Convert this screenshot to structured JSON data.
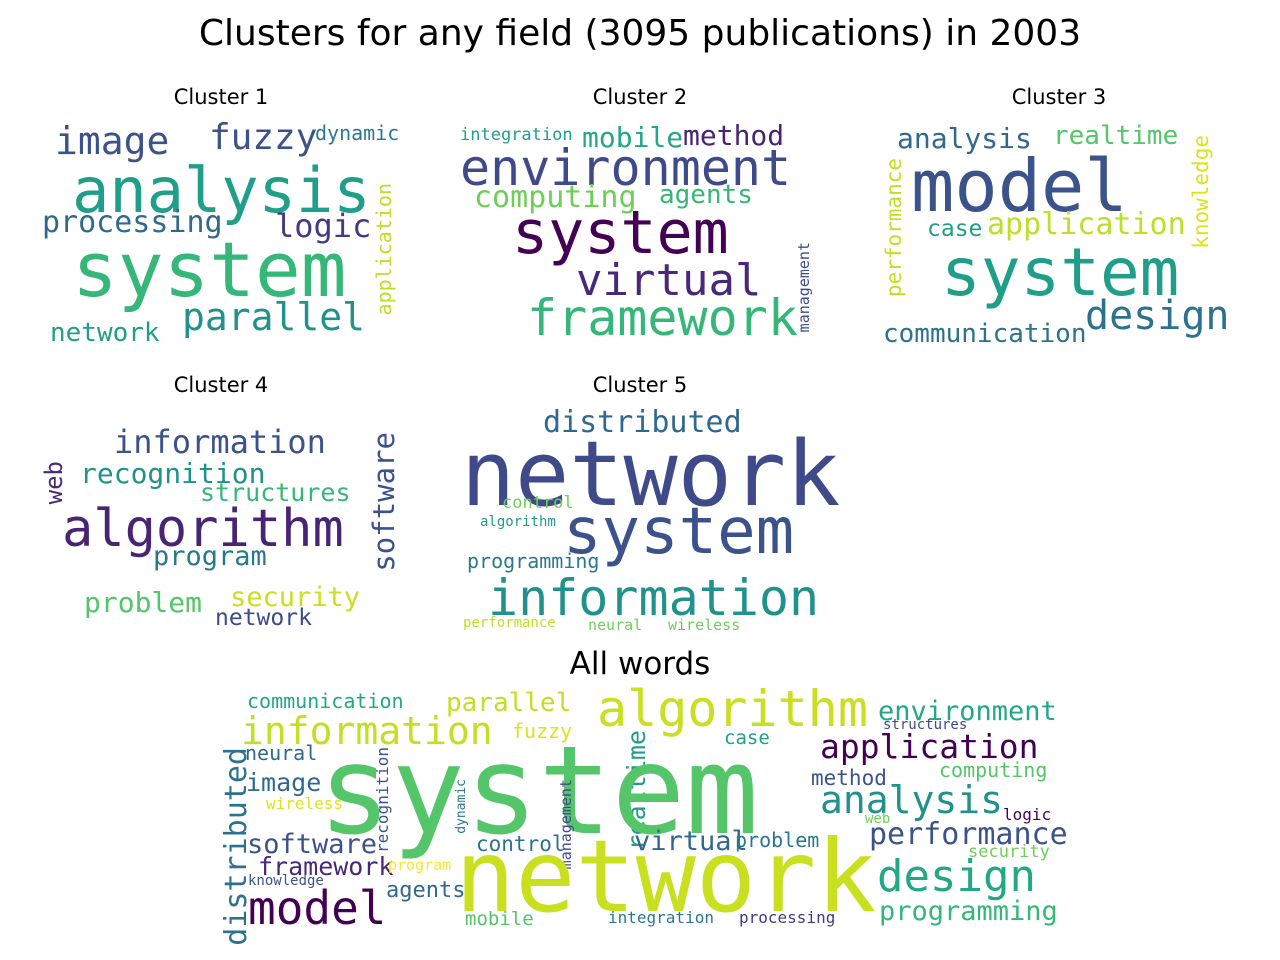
{
  "title": "Clusters for any field (3095 publications) in 2003",
  "panels": [
    {
      "id": "cluster-1",
      "title": "Cluster 1",
      "words": [
        {
          "text": "image",
          "color": "#3b528b"
        },
        {
          "text": "fuzzy",
          "color": "#3b528b"
        },
        {
          "text": "dynamic",
          "color": "#2a788e"
        },
        {
          "text": "analysis",
          "color": "#1f9e89"
        },
        {
          "text": "processing",
          "color": "#31688e"
        },
        {
          "text": "logic",
          "color": "#443983"
        },
        {
          "text": "application",
          "color": "#bddf26"
        },
        {
          "text": "system",
          "color": "#35b779"
        },
        {
          "text": "parallel",
          "color": "#21918c"
        },
        {
          "text": "network",
          "color": "#1f9e89"
        }
      ]
    },
    {
      "id": "cluster-2",
      "title": "Cluster 2",
      "words": [
        {
          "text": "integration",
          "color": "#1f9e89"
        },
        {
          "text": "mobile",
          "color": "#22a884"
        },
        {
          "text": "method",
          "color": "#482475"
        },
        {
          "text": "environment",
          "color": "#3e4a89"
        },
        {
          "text": "computing",
          "color": "#6ece58"
        },
        {
          "text": "agents",
          "color": "#35b779"
        },
        {
          "text": "system",
          "color": "#440154"
        },
        {
          "text": "virtual",
          "color": "#482878"
        },
        {
          "text": "framework",
          "color": "#35b779"
        },
        {
          "text": "management",
          "color": "#3e4a89"
        }
      ]
    },
    {
      "id": "cluster-3",
      "title": "Cluster 3",
      "words": [
        {
          "text": "analysis",
          "color": "#31688e"
        },
        {
          "text": "realtime",
          "color": "#54c568"
        },
        {
          "text": "knowledge",
          "color": "#dde318"
        },
        {
          "text": "model",
          "color": "#3b528b"
        },
        {
          "text": "performance",
          "color": "#c2df23"
        },
        {
          "text": "case",
          "color": "#1f9e89"
        },
        {
          "text": "application",
          "color": "#bddf26"
        },
        {
          "text": "system",
          "color": "#1f9e89"
        },
        {
          "text": "design",
          "color": "#2c728e"
        },
        {
          "text": "communication",
          "color": "#2c728e"
        }
      ]
    },
    {
      "id": "cluster-4",
      "title": "Cluster 4",
      "words": [
        {
          "text": "information",
          "color": "#3b528b"
        },
        {
          "text": "web",
          "color": "#482878"
        },
        {
          "text": "recognition",
          "color": "#21918c"
        },
        {
          "text": "structures",
          "color": "#35b779"
        },
        {
          "text": "software",
          "color": "#3b528b"
        },
        {
          "text": "algorithm",
          "color": "#482475"
        },
        {
          "text": "program",
          "color": "#2a788e"
        },
        {
          "text": "security",
          "color": "#c8e020"
        },
        {
          "text": "problem",
          "color": "#54c568"
        },
        {
          "text": "network",
          "color": "#3e4a89"
        }
      ]
    },
    {
      "id": "cluster-5",
      "title": "Cluster 5",
      "words": [
        {
          "text": "distributed",
          "color": "#31688e"
        },
        {
          "text": "network",
          "color": "#3e4a89"
        },
        {
          "text": "control",
          "color": "#6ece58"
        },
        {
          "text": "algorithm",
          "color": "#1f9e89"
        },
        {
          "text": "system",
          "color": "#3b528b"
        },
        {
          "text": "programming",
          "color": "#2a788e"
        },
        {
          "text": "information",
          "color": "#21918c"
        },
        {
          "text": "performance",
          "color": "#bddf26"
        },
        {
          "text": "neural",
          "color": "#6ece58"
        },
        {
          "text": "wireless",
          "color": "#6ece58"
        }
      ]
    },
    {
      "id": "all-words",
      "title": "All words",
      "words": [
        {
          "text": "communication",
          "color": "#22a884"
        },
        {
          "text": "parallel",
          "color": "#c2df23"
        },
        {
          "text": "algorithm",
          "color": "#c8e020"
        },
        {
          "text": "environment",
          "color": "#22a884"
        },
        {
          "text": "information",
          "color": "#c2df23"
        },
        {
          "text": "fuzzy",
          "color": "#dde318"
        },
        {
          "text": "structures",
          "color": "#3e4a89"
        },
        {
          "text": "neural",
          "color": "#31688e"
        },
        {
          "text": "case",
          "color": "#1f9e89"
        },
        {
          "text": "application",
          "color": "#440154"
        },
        {
          "text": "realtime",
          "color": "#1f9e89"
        },
        {
          "text": "system",
          "color": "#54c568"
        },
        {
          "text": "computing",
          "color": "#54c568"
        },
        {
          "text": "image",
          "color": "#31688e"
        },
        {
          "text": "method",
          "color": "#3b528b"
        },
        {
          "text": "distributed",
          "color": "#2c728e"
        },
        {
          "text": "wireless",
          "color": "#dde318"
        },
        {
          "text": "recognition",
          "color": "#3b528b"
        },
        {
          "text": "dynamic",
          "color": "#2a788e"
        },
        {
          "text": "analysis",
          "color": "#21918c"
        },
        {
          "text": "logic",
          "color": "#440154"
        },
        {
          "text": "management",
          "color": "#3e4a89"
        },
        {
          "text": "web",
          "color": "#6ece58"
        },
        {
          "text": "software",
          "color": "#3b528b"
        },
        {
          "text": "control",
          "color": "#2c728e"
        },
        {
          "text": "virtual",
          "color": "#31688e"
        },
        {
          "text": "problem",
          "color": "#2a788e"
        },
        {
          "text": "performance",
          "color": "#3b528b"
        },
        {
          "text": "security",
          "color": "#6ece58"
        },
        {
          "text": "framework",
          "color": "#482878"
        },
        {
          "text": "program",
          "color": "#fde725"
        },
        {
          "text": "network",
          "color": "#c8e020"
        },
        {
          "text": "design",
          "color": "#22a884"
        },
        {
          "text": "model",
          "color": "#440154"
        },
        {
          "text": "knowledge",
          "color": "#3b528b"
        },
        {
          "text": "agents",
          "color": "#31688e"
        },
        {
          "text": "programming",
          "color": "#35b779"
        },
        {
          "text": "mobile",
          "color": "#54c568"
        },
        {
          "text": "integration",
          "color": "#2a788e"
        },
        {
          "text": "processing",
          "color": "#443983"
        }
      ]
    }
  ]
}
